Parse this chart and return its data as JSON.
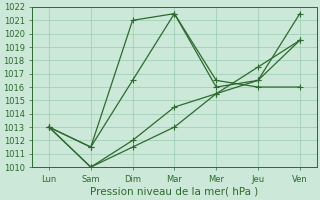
{
  "x_labels": [
    "Lun",
    "Sam",
    "Dim",
    "Mar",
    "Mer",
    "Jeu",
    "Ven"
  ],
  "x_positions": [
    0,
    1,
    2,
    3,
    4,
    5,
    6
  ],
  "line1": [
    1013.0,
    1011.5,
    1021.0,
    1021.5,
    1016.5,
    1016.0,
    1016.0
  ],
  "line2": [
    1013.0,
    1011.5,
    1016.5,
    1021.5,
    1016.0,
    1016.5,
    1021.5
  ],
  "line3": [
    1013.0,
    1010.0,
    1012.0,
    1014.5,
    1015.5,
    1017.5,
    1019.5
  ],
  "line4": [
    1013.0,
    1010.0,
    1011.5,
    1013.0,
    1015.5,
    1016.5,
    1019.5
  ],
  "ylim": [
    1010,
    1022
  ],
  "yticks": [
    1010,
    1011,
    1012,
    1013,
    1014,
    1015,
    1016,
    1017,
    1018,
    1019,
    1020,
    1021,
    1022
  ],
  "line_color": "#2d6a2d",
  "bg_color": "#cce8d8",
  "grid_color": "#99ccb3",
  "xlabel": "Pression niveau de la mer( hPa )",
  "xlabel_fontsize": 7.5,
  "tick_fontsize": 6.0,
  "marker": "+",
  "marker_size": 4.0,
  "linewidth": 0.9
}
